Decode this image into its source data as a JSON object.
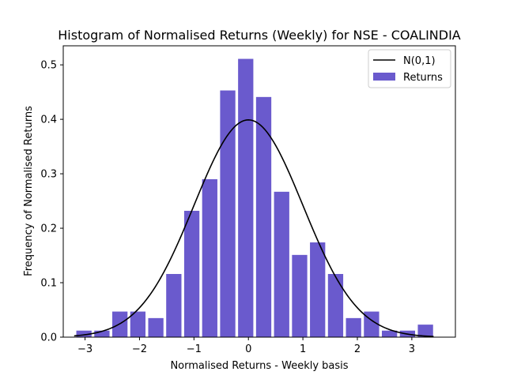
{
  "chart_data": {
    "type": "bar",
    "title": "Histogram of Normalised Returns (Weekly) for NSE - COALINDIA",
    "xlabel": "Normalised Returns - Weekly basis",
    "ylabel": "Frequency of Normalised Returns",
    "xlim": [
      -3.4,
      3.8
    ],
    "ylim": [
      0,
      0.535
    ],
    "xticks": [
      -3,
      -2,
      -1,
      0,
      1,
      2,
      3
    ],
    "xtick_labels": [
      "−3",
      "−2",
      "−1",
      "0",
      "1",
      "2",
      "3"
    ],
    "yticks": [
      0.0,
      0.1,
      0.2,
      0.3,
      0.4,
      0.5
    ],
    "ytick_labels": [
      "0.0",
      "0.1",
      "0.2",
      "0.3",
      "0.4",
      "0.5"
    ],
    "grid": false,
    "legend_position": "top-right",
    "bar_width": 0.28,
    "series": [
      {
        "name": "Returns",
        "color": "#6a5acd",
        "x": [
          -3.02,
          -2.69,
          -2.36,
          -2.03,
          -1.7,
          -1.37,
          -1.04,
          -0.71,
          -0.38,
          -0.05,
          0.28,
          0.61,
          0.94,
          1.27,
          1.6,
          1.93,
          2.26,
          2.59,
          2.92,
          3.25
        ],
        "values": [
          0.012,
          0.012,
          0.047,
          0.047,
          0.035,
          0.116,
          0.232,
          0.29,
          0.453,
          0.511,
          0.441,
          0.267,
          0.151,
          0.174,
          0.116,
          0.035,
          0.047,
          0.012,
          0.012,
          0.023
        ]
      },
      {
        "name": "N(0,1)",
        "color": "#000000",
        "type": "line",
        "function": "normal_pdf",
        "mean": 0,
        "std": 1,
        "x_range": [
          -3.2,
          3.4
        ]
      }
    ]
  }
}
